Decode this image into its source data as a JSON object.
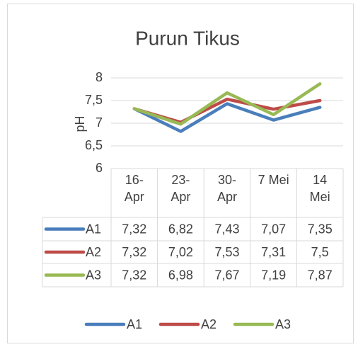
{
  "chart_data": {
    "type": "line",
    "title": "Purun Tikus",
    "y_label": "pH",
    "categories": [
      "16-Apr",
      "23-Apr",
      "30-Apr",
      "7 Mei",
      "14 Mei"
    ],
    "series": [
      {
        "name": "A1",
        "color": "#4a7ebb",
        "values": [
          7.32,
          6.82,
          7.43,
          7.07,
          7.35
        ],
        "value_labels": [
          "7,32",
          "6,82",
          "7,43",
          "7,07",
          "7,35"
        ]
      },
      {
        "name": "A2",
        "color": "#be4b48",
        "values": [
          7.32,
          7.02,
          7.53,
          7.31,
          7.5
        ],
        "value_labels": [
          "7,32",
          "7,02",
          "7,53",
          "7,31",
          "7,5"
        ]
      },
      {
        "name": "A3",
        "color": "#98b954",
        "values": [
          7.32,
          6.98,
          7.67,
          7.19,
          7.87
        ],
        "value_labels": [
          "7,32",
          "6,98",
          "7,67",
          "7,19",
          "7,87"
        ]
      }
    ],
    "ylim": [
      6,
      8
    ],
    "yticks": [
      6,
      {
        "value": 6.5,
        "label": "6,5"
      },
      7,
      {
        "value": 7.5,
        "label": "7,5"
      },
      8
    ],
    "grid": true,
    "legend": "bottom",
    "data_table": true
  }
}
